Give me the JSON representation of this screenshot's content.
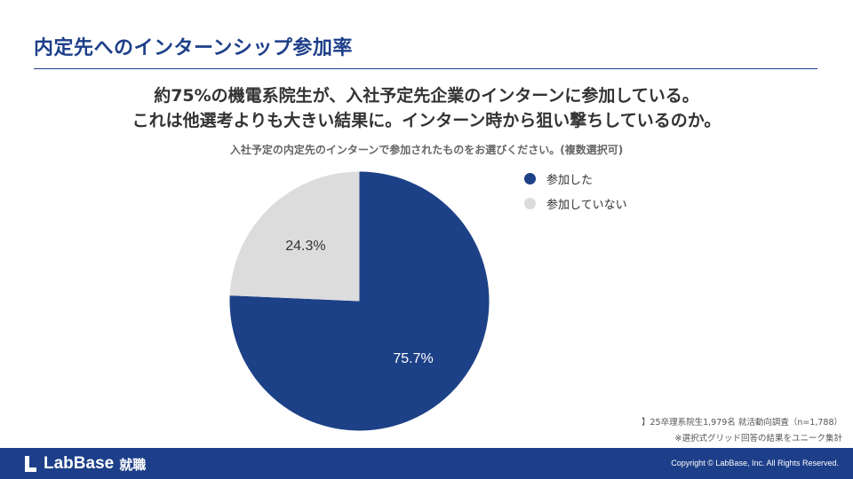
{
  "slide": {
    "title": "内定先へのインターンシップ参加率",
    "headline_line1": "約75%の機電系院生が、入社予定先企業のインターンに参加している。",
    "headline_line2": "これは他選考よりも大きい結果に。インターン時から狙い撃ちしているのか。"
  },
  "chart_data": {
    "type": "pie",
    "title": "入社予定の内定先のインターンで参加されたものをお選びください。(複数選択可)",
    "slices": [
      {
        "label": "参加した",
        "value": 75.7,
        "value_label": "75.7%",
        "color": "#1d4187"
      },
      {
        "label": "参加していない",
        "value": 24.3,
        "value_label": "24.3%",
        "color": "#dcdcdc"
      }
    ],
    "legend_position": "right",
    "start_angle": "top, clockwise"
  },
  "notes": {
    "line1": "】25卒理系院生1,979名 就活動向調査（n=1,788）",
    "line2": "※選択式グリッド回答の結果をユニーク集計"
  },
  "footer": {
    "logo_text": "LabBase",
    "logo_sub": "就職",
    "copyright": "Copyright © LabBase, Inc. All Rights Reserved.",
    "background": "#1d3f8a"
  }
}
